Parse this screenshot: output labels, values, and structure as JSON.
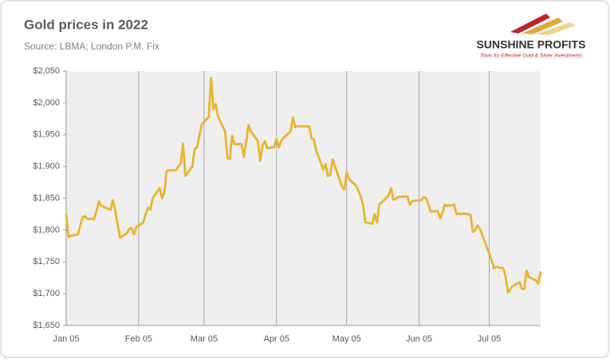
{
  "chart_data": {
    "type": "line",
    "title": "Gold prices in 2022",
    "subtitle": "Source: LBMA; London P.M. Fix",
    "logo": {
      "name": "SUNSHINE PROFITS",
      "tagline": "Tools for Effective Gold & Silver Investments"
    },
    "color": "#e8b52e",
    "grid": true,
    "x": [
      "Jan 05",
      "Jan 06",
      "Jan 07",
      "Jan 10",
      "Jan 12",
      "Jan 13",
      "Jan 14",
      "Jan 17",
      "Jan 19",
      "Jan 20",
      "Jan 24",
      "Jan 25",
      "Jan 26",
      "Jan 28",
      "Jan 31",
      "Feb 01",
      "Feb 02",
      "Feb 03",
      "Feb 04",
      "Feb 07",
      "Feb 08",
      "Feb 09",
      "Feb 10",
      "Feb 11",
      "Feb 14",
      "Feb 15",
      "Feb 16",
      "Feb 17",
      "Feb 18",
      "Feb 21",
      "Feb 22",
      "Feb 23",
      "Feb 24",
      "Feb 25",
      "Feb 28",
      "Mar 01",
      "Mar 02",
      "Mar 03",
      "Mar 04",
      "Mar 07",
      "Mar 08",
      "Mar 09",
      "Mar 10",
      "Mar 11",
      "Mar 14",
      "Mar 15",
      "Mar 16",
      "Mar 17",
      "Mar 18",
      "Mar 21",
      "Mar 22",
      "Mar 23",
      "Mar 24",
      "Mar 25",
      "Mar 28",
      "Mar 29",
      "Mar 30",
      "Mar 31",
      "Apr 01",
      "Apr 04",
      "Apr 05",
      "Apr 06",
      "Apr 07",
      "Apr 08",
      "Apr 11",
      "Apr 12",
      "Apr 13",
      "Apr 14",
      "Apr 19",
      "Apr 20",
      "Apr 21",
      "Apr 22",
      "Apr 25",
      "Apr 26",
      "Apr 27",
      "Apr 28",
      "Apr 29",
      "May 03",
      "May 04",
      "May 05",
      "May 06",
      "May 09",
      "May 10",
      "May 11",
      "May 12",
      "May 13",
      "May 16",
      "May 17",
      "May 18",
      "May 19",
      "May 20",
      "May 23",
      "May 24",
      "May 25",
      "May 26",
      "May 27",
      "May 31",
      "Jun 01",
      "Jun 02",
      "Jun 03",
      "Jun 06",
      "Jun 07",
      "Jun 08",
      "Jun 09",
      "Jun 10",
      "Jun 13",
      "Jun 14",
      "Jun 15",
      "Jun 16",
      "Jun 17",
      "Jun 20",
      "Jun 21",
      "Jun 22",
      "Jun 23",
      "Jun 24",
      "Jun 27",
      "Jun 28",
      "Jun 29",
      "Jun 30",
      "Jul 01",
      "Jul 05",
      "Jul 06",
      "Jul 07",
      "Jul 08",
      "Jul 11",
      "Jul 12",
      "Jul 13",
      "Jul 14",
      "Jul 15",
      "Jul 18",
      "Jul 19",
      "Jul 20",
      "Jul 21",
      "Jul 22",
      "Jul 25",
      "Jul 26",
      "Jul 27"
    ],
    "values": [
      1825,
      1789,
      1791,
      1793,
      1820,
      1822,
      1818,
      1817,
      1845,
      1838,
      1832,
      1847,
      1830,
      1788,
      1795,
      1802,
      1803,
      1793,
      1805,
      1812,
      1825,
      1835,
      1832,
      1850,
      1866,
      1850,
      1860,
      1893,
      1894,
      1894,
      1900,
      1905,
      1936,
      1885,
      1900,
      1928,
      1930,
      1948,
      1966,
      1978,
      2039,
      1990,
      1998,
      1978,
      1955,
      1913,
      1912,
      1948,
      1935,
      1935,
      1915,
      1938,
      1965,
      1955,
      1940,
      1909,
      1933,
      1940,
      1929,
      1930,
      1943,
      1930,
      1940,
      1945,
      1955,
      1977,
      1962,
      1963,
      1963,
      1944,
      1942,
      1925,
      1895,
      1904,
      1885,
      1887,
      1911,
      1868,
      1864,
      1891,
      1880,
      1870,
      1862,
      1853,
      1840,
      1812,
      1810,
      1825,
      1812,
      1841,
      1843,
      1855,
      1866,
      1848,
      1849,
      1852,
      1853,
      1840,
      1845,
      1846,
      1847,
      1852,
      1850,
      1840,
      1829,
      1830,
      1818,
      1827,
      1840,
      1838,
      1840,
      1825,
      1826,
      1825,
      1826,
      1824,
      1797,
      1800,
      1807,
      1802,
      1763,
      1753,
      1740,
      1742,
      1740,
      1727,
      1702,
      1707,
      1712,
      1718,
      1708,
      1707,
      1736,
      1726,
      1721,
      1716,
      1735
    ],
    "xlim": [
      "Jan 05",
      "Jul 27"
    ],
    "xticks": [
      "Jan 05",
      "Feb 05",
      "Mar 05",
      "Apr 05",
      "May 05",
      "Jun 05",
      "Jul 05"
    ],
    "ylim": [
      1650,
      2050
    ],
    "yticks": [
      {
        "value": 1650,
        "label": "$1,650"
      },
      {
        "value": 1700,
        "label": "$1,700"
      },
      {
        "value": 1750,
        "label": "$1,750"
      },
      {
        "value": 1800,
        "label": "$1,800"
      },
      {
        "value": 1850,
        "label": "$1,850"
      },
      {
        "value": 1900,
        "label": "$1,900"
      },
      {
        "value": 1950,
        "label": "$1,950"
      },
      {
        "value": 2000,
        "label": "$2,000"
      },
      {
        "value": 2050,
        "label": "$2,050"
      }
    ]
  }
}
